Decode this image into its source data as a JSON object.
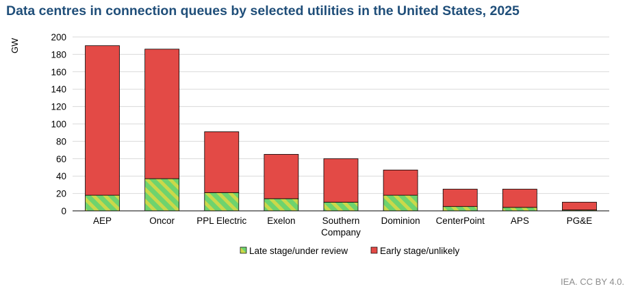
{
  "chart_data": {
    "type": "bar",
    "stacked": true,
    "title": "Data centres in connection queues by selected utilities in the United States, 2025",
    "ylabel": "GW",
    "ylim": [
      0,
      200
    ],
    "yticks": [
      0,
      20,
      40,
      60,
      80,
      100,
      120,
      140,
      160,
      180,
      200
    ],
    "grid": true,
    "legend_position": "bottom",
    "categories": [
      "AEP",
      "Oncor",
      "PPL Electric",
      "Exelon",
      "Southern Company",
      "Dominion",
      "CenterPoint",
      "APS",
      "PG&E"
    ],
    "series": [
      {
        "name": "Late stage/under review",
        "color": "#6ed36e",
        "pattern": "diagonal-stripes",
        "stripe_color": "#cbd84a",
        "values": [
          18,
          37,
          21,
          14,
          10,
          18,
          5,
          4,
          1
        ]
      },
      {
        "name": "Early stage/unlikely",
        "color": "#e34a46",
        "values": [
          172,
          149,
          70,
          51,
          50,
          29,
          20,
          21,
          9
        ]
      }
    ]
  },
  "source": "IEA. CC BY 4.0."
}
